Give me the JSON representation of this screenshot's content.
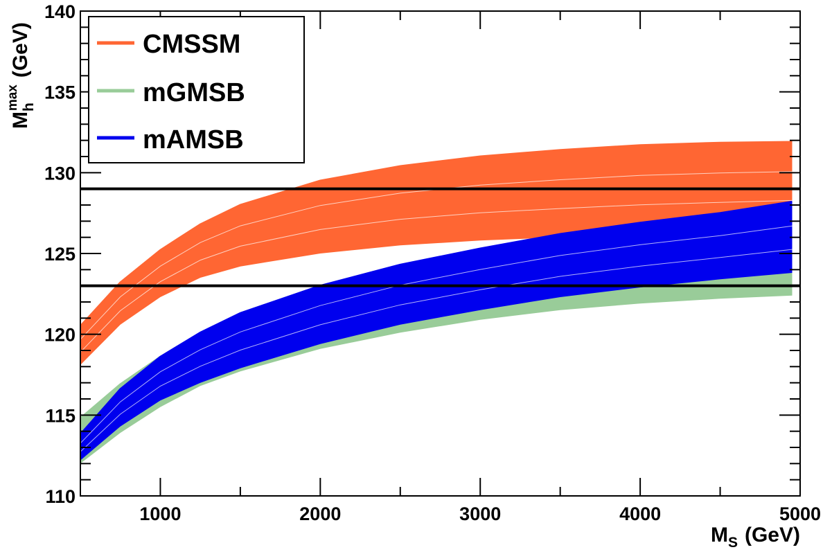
{
  "chart_data": {
    "type": "area",
    "title": "",
    "xlabel": "M_S (GeV)",
    "xlabel_parts": {
      "main": "M",
      "sub": "S",
      "unit": "(GeV)"
    },
    "ylabel": "M_h^max (GeV)",
    "ylabel_parts": {
      "main": "M",
      "sub": "h",
      "sup": "max",
      "unit": "(GeV)"
    },
    "xlim": [
      500,
      5000
    ],
    "ylim": [
      110,
      140
    ],
    "x_ticks": [
      1000,
      2000,
      3000,
      4000,
      5000
    ],
    "y_ticks": [
      110,
      115,
      120,
      125,
      130,
      135,
      140
    ],
    "x_tick_labels": [
      "1000",
      "2000",
      "3000",
      "4000",
      "5000"
    ],
    "y_tick_labels": [
      "110",
      "115",
      "120",
      "125",
      "130",
      "135",
      "140"
    ],
    "legend_position": "top-left",
    "reference_lines": [
      123,
      129
    ],
    "series": [
      {
        "name": "CMSSM",
        "color": "#ff6633",
        "x": [
          500,
          750,
          1000,
          1250,
          1500,
          2000,
          2500,
          3000,
          3500,
          4000,
          4500,
          4950
        ],
        "upper": [
          120.5,
          123.2,
          125.2,
          126.8,
          128.0,
          129.5,
          130.4,
          131.0,
          131.4,
          131.7,
          131.85,
          131.9
        ],
        "lower": [
          118.1,
          120.6,
          122.3,
          123.5,
          124.2,
          125.0,
          125.5,
          125.8,
          126.0,
          126.2,
          126.35,
          126.5
        ]
      },
      {
        "name": "mGMSB",
        "color": "#99cc99",
        "x": [
          500,
          750,
          1000,
          1250,
          1500,
          2000,
          2500,
          3000,
          3500,
          4000,
          4500,
          4950
        ],
        "upper": [
          114.8,
          116.9,
          118.6,
          119.9,
          121.0,
          122.6,
          123.8,
          124.7,
          125.5,
          126.0,
          126.5,
          127.0
        ],
        "lower": [
          112.0,
          113.9,
          115.5,
          116.8,
          117.7,
          119.1,
          120.1,
          120.9,
          121.5,
          121.9,
          122.2,
          122.4
        ]
      },
      {
        "name": "mAMSB",
        "color": "#0000ee",
        "x": [
          500,
          750,
          1000,
          1250,
          1500,
          2000,
          2500,
          3000,
          3500,
          4000,
          4500,
          4950
        ],
        "upper": [
          113.8,
          116.6,
          118.6,
          120.1,
          121.3,
          123.0,
          124.3,
          125.3,
          126.2,
          126.9,
          127.5,
          128.2
        ],
        "lower": [
          112.2,
          114.3,
          115.9,
          117.0,
          117.9,
          119.4,
          120.6,
          121.5,
          122.3,
          122.9,
          123.4,
          123.8
        ]
      }
    ]
  }
}
